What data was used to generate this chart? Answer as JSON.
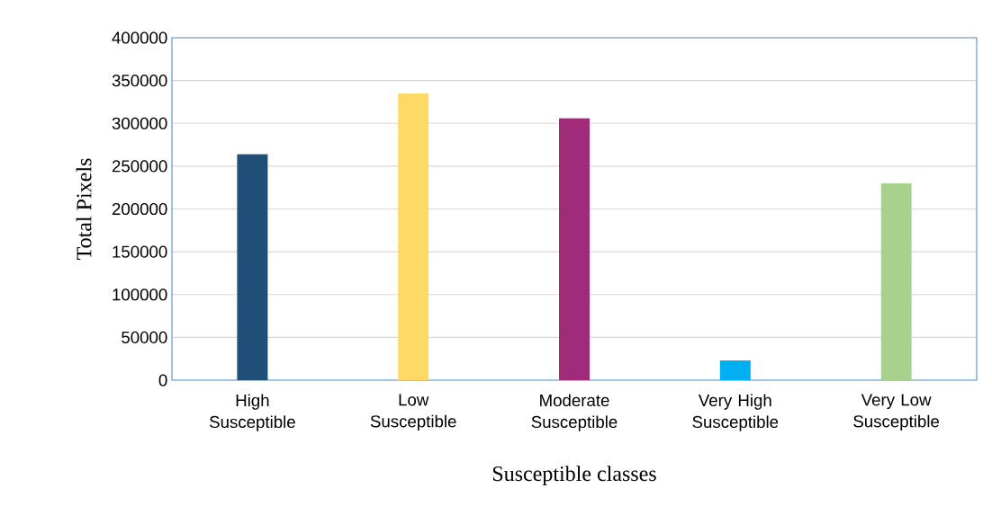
{
  "chart_data": {
    "type": "bar",
    "xlabel": "Susceptible classes",
    "ylabel": "Total Pixels",
    "categories": [
      "High Susceptible",
      "Low Susceptible",
      "Moderate Susceptible",
      "Very High Susceptible",
      "Very Low Susceptible"
    ],
    "values": [
      264000,
      335000,
      306000,
      23000,
      230000
    ],
    "colors": [
      "#1f4e79",
      "#ffd966",
      "#a02b7a",
      "#00b0f0",
      "#a9d18e"
    ],
    "ylim": [
      0,
      400000
    ],
    "yticks": [
      0,
      50000,
      100000,
      150000,
      200000,
      250000,
      300000,
      350000,
      400000
    ],
    "grid": "y"
  }
}
